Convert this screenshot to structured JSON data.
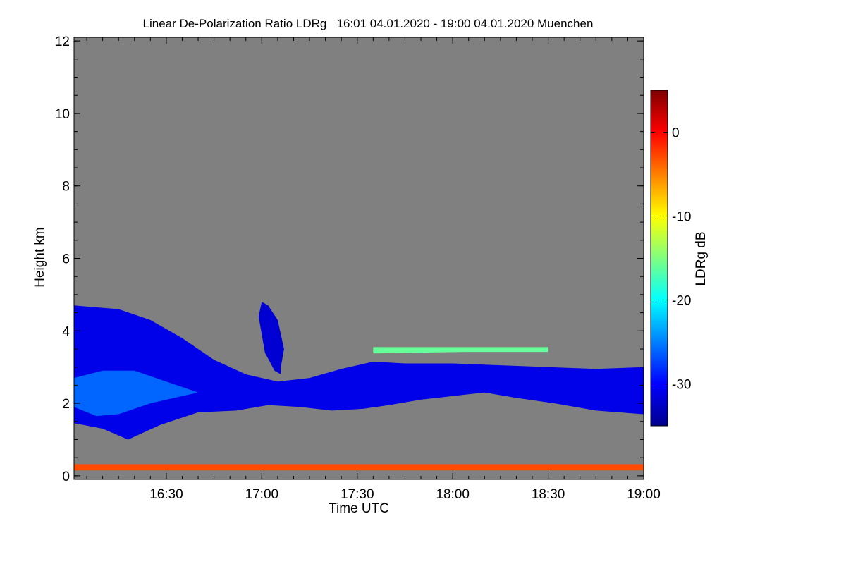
{
  "chart_data": {
    "type": "heatmap",
    "title": "Linear De-Polarization Ratio LDRg   16:01 04.01.2020 - 19:00 04.01.2020 Muenchen",
    "xlabel": "Time UTC",
    "ylabel": "Height km",
    "colorbar_label": "LDRg dB",
    "x_range_minutes": [
      961,
      1140
    ],
    "x_ticks": [
      {
        "label": "16:30",
        "minutes": 990
      },
      {
        "label": "17:00",
        "minutes": 1020
      },
      {
        "label": "17:30",
        "minutes": 1050
      },
      {
        "label": "18:00",
        "minutes": 1080
      },
      {
        "label": "18:30",
        "minutes": 1110
      },
      {
        "label": "19:00",
        "minutes": 1140
      }
    ],
    "y_range": [
      -0.1,
      12.1
    ],
    "y_ticks": [
      0,
      2,
      4,
      6,
      8,
      10,
      12
    ],
    "colorbar_range": [
      -35,
      5
    ],
    "colorbar_ticks": [
      0,
      -10,
      -20,
      -30
    ],
    "no_data_color": "#808080",
    "layers": [
      {
        "name": "cloud-layer",
        "ldr_db": -31,
        "top": [
          [
            961,
            4.7
          ],
          [
            975,
            4.6
          ],
          [
            985,
            4.3
          ],
          [
            995,
            3.8
          ],
          [
            1005,
            3.2
          ],
          [
            1015,
            2.8
          ],
          [
            1025,
            2.6
          ],
          [
            1035,
            2.7
          ],
          [
            1045,
            2.95
          ],
          [
            1055,
            3.15
          ],
          [
            1065,
            3.1
          ],
          [
            1080,
            3.1
          ],
          [
            1095,
            3.05
          ],
          [
            1110,
            3.0
          ],
          [
            1125,
            2.95
          ],
          [
            1140,
            3.0
          ]
        ],
        "bottom": [
          [
            961,
            1.45
          ],
          [
            970,
            1.3
          ],
          [
            978,
            1.0
          ],
          [
            988,
            1.4
          ],
          [
            1000,
            1.75
          ],
          [
            1012,
            1.8
          ],
          [
            1022,
            1.95
          ],
          [
            1032,
            1.9
          ],
          [
            1042,
            1.8
          ],
          [
            1052,
            1.85
          ],
          [
            1060,
            1.95
          ],
          [
            1070,
            2.1
          ],
          [
            1080,
            2.2
          ],
          [
            1090,
            2.3
          ],
          [
            1100,
            2.15
          ],
          [
            1112,
            2.0
          ],
          [
            1125,
            1.8
          ],
          [
            1140,
            1.7
          ]
        ]
      },
      {
        "name": "cloud-core",
        "ldr_db": -26,
        "top": [
          [
            961,
            2.7
          ],
          [
            970,
            2.9
          ],
          [
            980,
            2.9
          ],
          [
            990,
            2.6
          ],
          [
            1000,
            2.3
          ]
        ],
        "bottom": [
          [
            961,
            1.9
          ],
          [
            968,
            1.65
          ],
          [
            975,
            1.7
          ],
          [
            985,
            2.0
          ],
          [
            1000,
            2.3
          ]
        ]
      },
      {
        "name": "fall-streaks",
        "ldr_db": -32,
        "top": [
          [
            1020,
            4.8
          ],
          [
            1022,
            4.7
          ],
          [
            1025,
            4.3
          ],
          [
            1027,
            3.5
          ],
          [
            1026,
            3.0
          ]
        ],
        "bottom": [
          [
            1019,
            4.4
          ],
          [
            1021,
            3.4
          ],
          [
            1024,
            2.9
          ],
          [
            1026,
            2.8
          ],
          [
            1026,
            3.0
          ]
        ]
      },
      {
        "name": "aerosol-layer",
        "ldr_db": -16,
        "top": [
          [
            1055,
            3.55
          ],
          [
            1085,
            3.55
          ],
          [
            1110,
            3.55
          ]
        ],
        "bottom": [
          [
            1055,
            3.38
          ],
          [
            1085,
            3.42
          ],
          [
            1110,
            3.42
          ]
        ]
      },
      {
        "name": "ground-return",
        "ldr_db": -3,
        "top": [
          [
            961,
            0.32
          ],
          [
            1140,
            0.32
          ]
        ],
        "bottom": [
          [
            961,
            0.15
          ],
          [
            1140,
            0.15
          ]
        ]
      }
    ]
  }
}
